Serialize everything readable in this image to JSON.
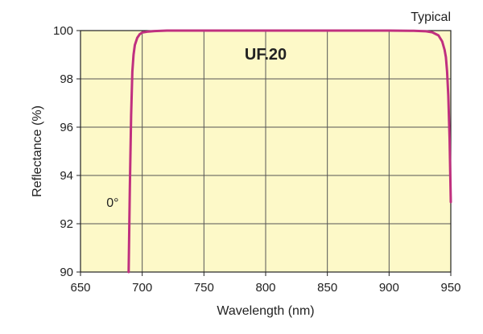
{
  "chart_data": {
    "type": "line",
    "title": "UF.20",
    "corner_note": "Typical",
    "xlabel": "Wavelength (nm)",
    "ylabel": "Reflectance (%)",
    "xlim": [
      650,
      950
    ],
    "ylim": [
      90,
      100
    ],
    "xticks": [
      650,
      700,
      750,
      800,
      850,
      900,
      950
    ],
    "yticks": [
      90,
      92,
      94,
      96,
      98,
      100
    ],
    "grid": true,
    "background_color": "#fdf9c8",
    "series": [
      {
        "name": "0°",
        "color": "#c0307f",
        "x": [
          689,
          690,
          691,
          692,
          693,
          694,
          696,
          698,
          700,
          705,
          710,
          720,
          750,
          800,
          850,
          900,
          920,
          930,
          935,
          940,
          943,
          945,
          946,
          947,
          948,
          949,
          950
        ],
        "y": [
          90.0,
          93.5,
          96.5,
          98.3,
          99.0,
          99.4,
          99.7,
          99.85,
          99.92,
          99.96,
          99.98,
          100.0,
          100.0,
          100.0,
          100.0,
          100.0,
          99.99,
          99.97,
          99.93,
          99.8,
          99.55,
          99.2,
          98.9,
          98.3,
          97.3,
          95.5,
          92.9
        ]
      }
    ],
    "annotations": [
      {
        "text": "0°",
        "x": 681,
        "y": 92.9
      }
    ]
  }
}
